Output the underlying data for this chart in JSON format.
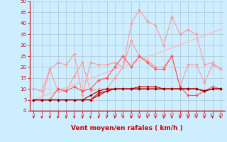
{
  "x": [
    0,
    1,
    2,
    3,
    4,
    5,
    6,
    7,
    8,
    9,
    10,
    11,
    12,
    13,
    14,
    15,
    16,
    17,
    18,
    19,
    20,
    21,
    22,
    23
  ],
  "series": [
    {
      "name": "line1_light",
      "color": "#ff9999",
      "linewidth": 0.8,
      "marker": "D",
      "markersize": 2.0,
      "y": [
        10,
        9,
        19,
        22,
        21,
        26,
        7,
        22,
        21,
        21,
        22,
        20,
        40,
        46,
        41,
        39,
        30,
        43,
        35,
        37,
        35,
        21,
        22,
        19
      ]
    },
    {
      "name": "line2_light",
      "color": "#ff9999",
      "linewidth": 0.8,
      "marker": "D",
      "markersize": 2.0,
      "y": [
        5,
        5,
        19,
        9,
        9,
        16,
        22,
        9,
        10,
        10,
        15,
        20,
        32,
        25,
        23,
        20,
        20,
        25,
        11,
        21,
        21,
        13,
        21,
        19
      ]
    },
    {
      "name": "linear_trend",
      "color": "#ffbbbb",
      "linewidth": 1.0,
      "marker": null,
      "markersize": 0,
      "y": [
        5,
        6.4,
        7.8,
        9.2,
        10.6,
        12.0,
        13.4,
        14.8,
        16.2,
        17.6,
        19.0,
        20.4,
        21.8,
        23.2,
        24.6,
        26.0,
        27.4,
        28.8,
        30.2,
        31.6,
        33.0,
        34.4,
        35.8,
        37.2
      ]
    },
    {
      "name": "line3_med",
      "color": "#ff5555",
      "linewidth": 0.8,
      "marker": "D",
      "markersize": 2.0,
      "y": [
        5,
        5,
        5,
        10,
        9,
        11,
        9,
        10,
        14,
        15,
        20,
        25,
        20,
        25,
        22,
        19,
        19,
        25,
        11,
        7,
        7,
        9,
        11,
        10
      ]
    },
    {
      "name": "line4_dark",
      "color": "#cc0000",
      "linewidth": 0.8,
      "marker": "D",
      "markersize": 1.8,
      "y": [
        5,
        5,
        5,
        5,
        5,
        5,
        5,
        5,
        7,
        9,
        10,
        10,
        10,
        10,
        10,
        10,
        10,
        10,
        10,
        10,
        10,
        9,
        10,
        10
      ]
    },
    {
      "name": "line5_dark",
      "color": "#cc0000",
      "linewidth": 0.8,
      "marker": "D",
      "markersize": 1.8,
      "y": [
        5,
        5,
        5,
        5,
        5,
        5,
        5,
        5,
        8,
        9,
        10,
        10,
        10,
        11,
        11,
        11,
        10,
        10,
        10,
        10,
        10,
        9,
        10,
        10
      ]
    },
    {
      "name": "line6_dark",
      "color": "#990000",
      "linewidth": 0.8,
      "marker": "D",
      "markersize": 1.8,
      "y": [
        5,
        5,
        5,
        5,
        5,
        5,
        5,
        7,
        9,
        10,
        10,
        10,
        10,
        10,
        10,
        10,
        10,
        10,
        10,
        10,
        10,
        9,
        10,
        10
      ]
    }
  ],
  "xlabel": "Vent moyen/en rafales ( km/h )",
  "xlim": [
    -0.5,
    23.5
  ],
  "ylim": [
    0,
    50
  ],
  "yticks": [
    0,
    5,
    10,
    15,
    20,
    25,
    30,
    35,
    40,
    45,
    50
  ],
  "xticks": [
    0,
    1,
    2,
    3,
    4,
    5,
    6,
    7,
    8,
    9,
    10,
    11,
    12,
    13,
    14,
    15,
    16,
    17,
    18,
    19,
    20,
    21,
    22,
    23
  ],
  "background_color": "#cceeff",
  "grid_color": "#aabbcc",
  "tick_color": "#cc0000",
  "label_color": "#cc0000",
  "xlabel_fontsize": 6.5,
  "ytick_fontsize": 5.0,
  "xtick_fontsize": 4.2
}
